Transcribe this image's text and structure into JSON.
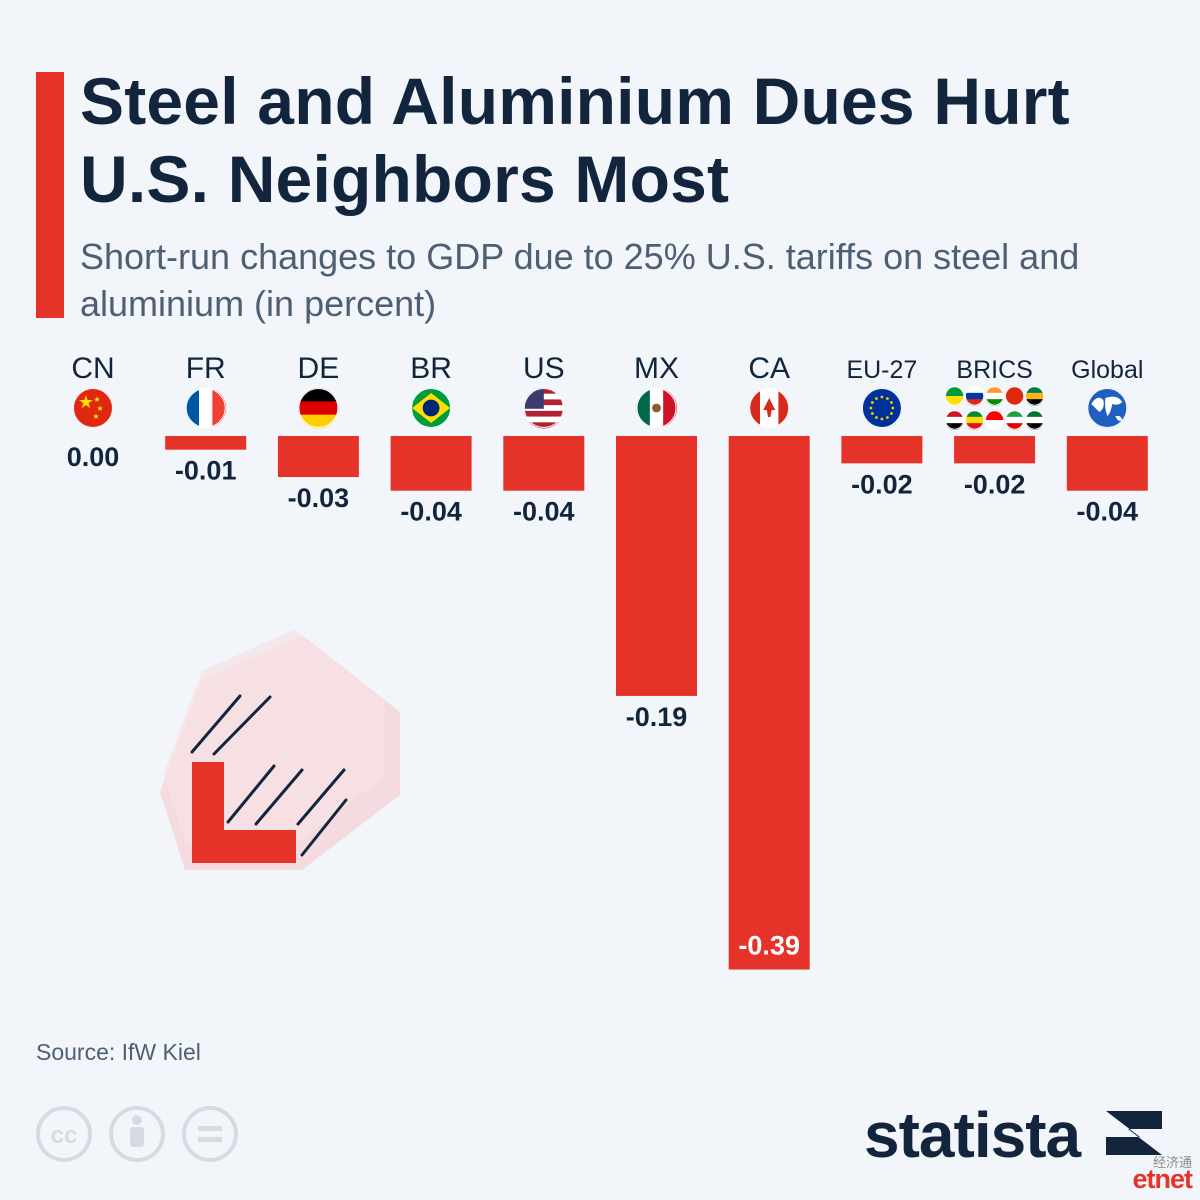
{
  "header": {
    "title": "Steel and Aluminium Dues Hurt U.S. Neighbors Most",
    "subtitle": "Short-run changes to GDP due to 25% U.S. tariffs on steel and aluminium (in percent)"
  },
  "chart_data": {
    "type": "bar",
    "title": "Steel and Aluminium Dues Hurt U.S. Neighbors Most",
    "subtitle": "Short-run changes to GDP due to 25% U.S. tariffs on steel and aluminium (in percent)",
    "categories": [
      "CN",
      "FR",
      "DE",
      "BR",
      "US",
      "MX",
      "CA",
      "EU-27",
      "BRICS",
      "Global"
    ],
    "values": [
      0.0,
      -0.01,
      -0.03,
      -0.04,
      -0.04,
      -0.19,
      -0.39,
      -0.02,
      -0.02,
      -0.04
    ],
    "value_labels": [
      "0.00",
      "-0.01",
      "-0.03",
      "-0.04",
      "-0.04",
      "-0.19",
      "-0.39",
      "-0.02",
      "-0.02",
      "-0.04"
    ],
    "flag_icons": [
      "china-flag-icon",
      "france-flag-icon",
      "germany-flag-icon",
      "brazil-flag-icon",
      "usa-flag-icon",
      "mexico-flag-icon",
      "canada-flag-icon",
      "eu-flag-icon",
      "brics-flags-icon",
      "globe-icon"
    ],
    "xlabel": "",
    "ylabel": "",
    "ylim": [
      -0.4,
      0
    ],
    "grid": false,
    "legend": "none",
    "bar_color": "#e63329"
  },
  "footer": {
    "source": "Source: IfW Kiel",
    "license_icons": [
      "cc-icon",
      "attribution-icon",
      "no-derivatives-icon"
    ]
  },
  "brand": {
    "name": "statista"
  },
  "watermark": {
    "chinese": "经济通",
    "latin": "etnet"
  },
  "colors": {
    "accent": "#e63329",
    "title": "#13253d",
    "subtitle": "#4e5f74",
    "background": "#f2f6fa"
  }
}
